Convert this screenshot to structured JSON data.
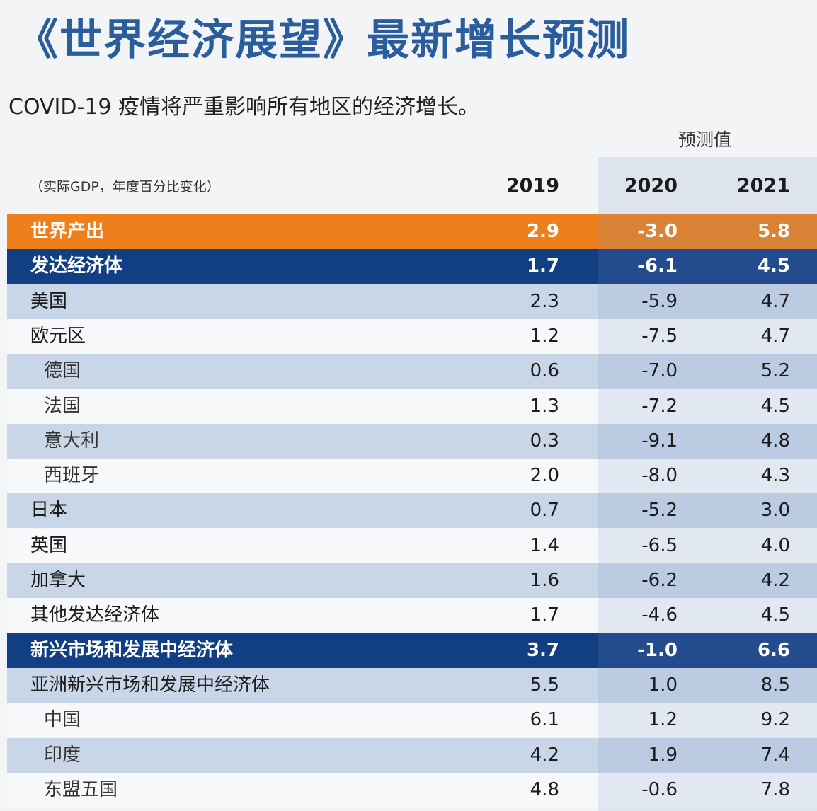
{
  "header": {
    "title": "《世界经济展望》最新增长预测",
    "subtitle": "COVID-19 疫情将严重影响所有地区的经济增长。",
    "forecast_label": "预测值",
    "unit_note": "（实际GDP，年度百分比变化）"
  },
  "table": {
    "columns": [
      "2019",
      "2020",
      "2021"
    ],
    "rows": [
      [
        "世界产出",
        "2.9",
        "-3.0",
        "5.8"
      ],
      [
        "发达经济体",
        "1.7",
        "-6.1",
        "4.5"
      ],
      [
        "美国",
        "2.3",
        "-5.9",
        "4.7"
      ],
      [
        "欧元区",
        "1.2",
        "-7.5",
        "4.7"
      ],
      [
        "德国",
        "0.6",
        "-7.0",
        "5.2"
      ],
      [
        "法国",
        "1.3",
        "-7.2",
        "4.5"
      ],
      [
        "意大利",
        "0.3",
        "-9.1",
        "4.8"
      ],
      [
        "西班牙",
        "2.0",
        "-8.0",
        "4.3"
      ],
      [
        "日本",
        "0.7",
        "-5.2",
        "3.0"
      ],
      [
        "英国",
        "1.4",
        "-6.5",
        "4.0"
      ],
      [
        "加拿大",
        "1.6",
        "-6.2",
        "4.2"
      ],
      [
        "其他发达经济体",
        "1.7",
        "-4.6",
        "4.5"
      ],
      [
        "新兴市场和发展中经济体",
        "3.7",
        "-1.0",
        "6.6"
      ],
      [
        "亚洲新兴市场和发展中经济体",
        "5.5",
        "1.0",
        "8.5"
      ],
      [
        "中国",
        "6.1",
        "1.2",
        "9.2"
      ],
      [
        "印度",
        "4.2",
        "1.9",
        "7.4"
      ],
      [
        "东盟五国",
        "4.8",
        "-0.6",
        "7.8"
      ]
    ]
  }
}
